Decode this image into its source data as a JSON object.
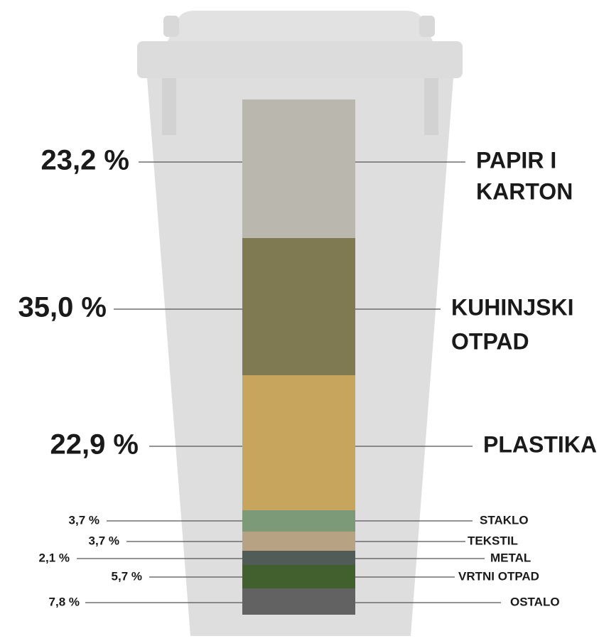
{
  "items": [
    {
      "percent": "23,2 %",
      "label": [
        "PAPIR I",
        "KARTON"
      ]
    },
    {
      "percent": "35,0 %",
      "label": [
        "KUHINJSKI",
        "OTPAD"
      ]
    },
    {
      "percent": "22,9 %",
      "label": [
        "PLASTIKA"
      ]
    },
    {
      "percent": "3,7 %",
      "label": [
        "STAKLO"
      ]
    },
    {
      "percent": "3,7 %",
      "label": [
        "TEKSTIL"
      ]
    },
    {
      "percent": "2,1 %",
      "label": [
        "METAL"
      ]
    },
    {
      "percent": "5,7 %",
      "label": [
        "VRTNI OTPAD"
      ]
    },
    {
      "percent": "7,8 %",
      "label": [
        "OSTALO"
      ]
    }
  ]
}
